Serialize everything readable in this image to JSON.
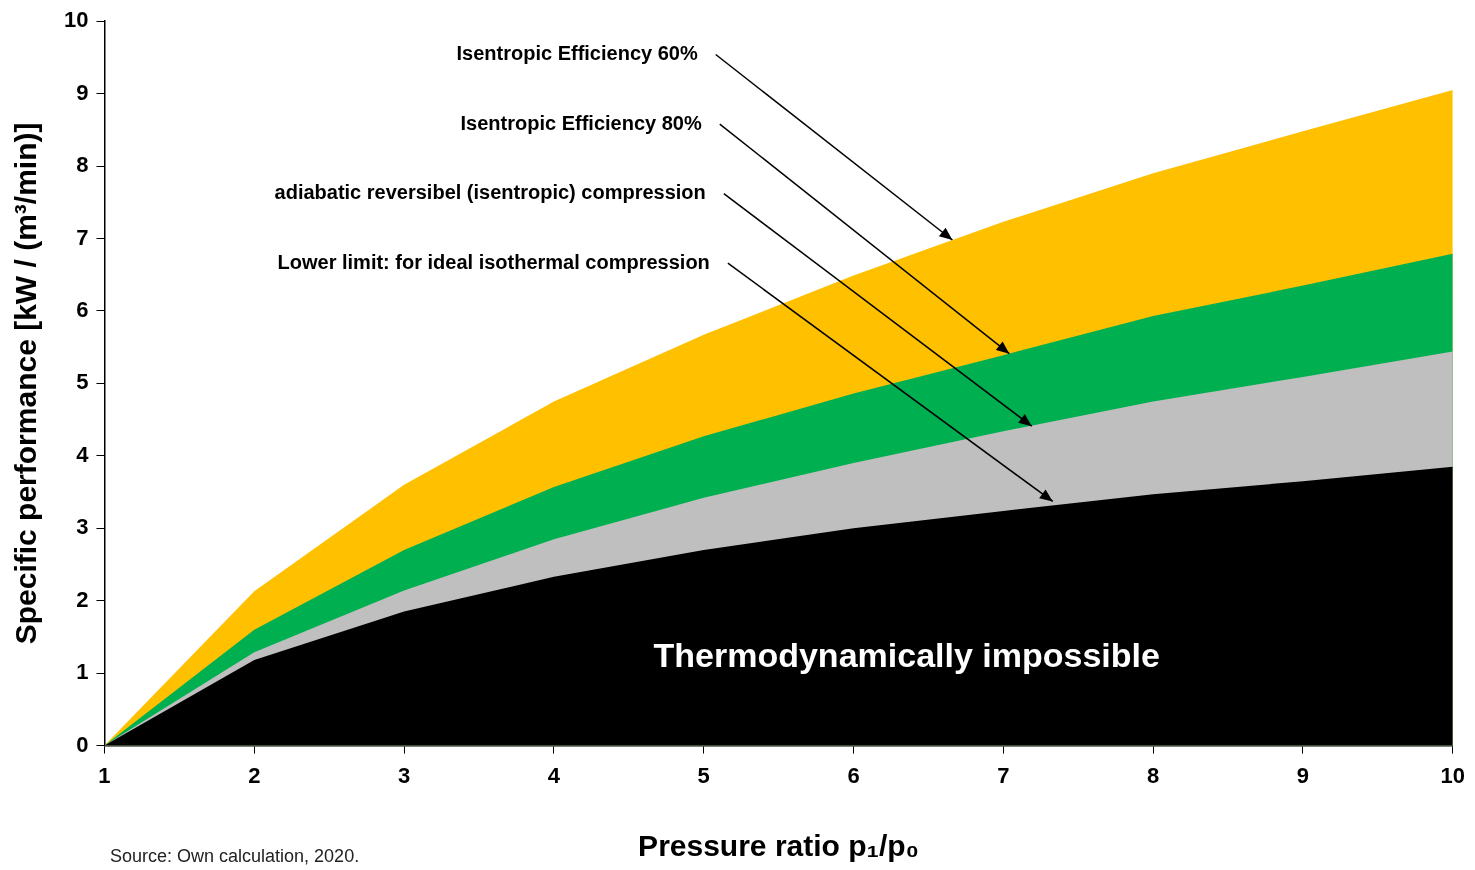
{
  "chart_data": {
    "type": "area",
    "xlabel": "Pressure ratio p₁/p₀",
    "ylabel": "Specific performance [kW / (m³/min)]",
    "x": [
      1,
      2,
      3,
      4,
      5,
      6,
      7,
      8,
      9,
      10
    ],
    "series": [
      {
        "color": "#000000",
        "values": [
          0,
          1.18,
          1.85,
          2.33,
          2.7,
          3.0,
          3.24,
          3.47,
          3.65,
          3.85
        ]
      },
      {
        "color": "#bfbfbf",
        "values": [
          0,
          1.29,
          2.14,
          2.85,
          3.42,
          3.9,
          4.34,
          4.75,
          5.09,
          5.44
        ]
      },
      {
        "color": "#00b050",
        "values": [
          0,
          1.6,
          2.7,
          3.57,
          4.27,
          4.86,
          5.39,
          5.93,
          6.35,
          6.79
        ]
      },
      {
        "color": "#ffc000",
        "values": [
          0,
          2.13,
          3.6,
          4.75,
          5.67,
          6.49,
          7.23,
          7.9,
          8.48,
          9.05
        ]
      }
    ],
    "xlim": [
      1,
      10
    ],
    "xticks": [
      1,
      2,
      3,
      4,
      5,
      6,
      7,
      8,
      9,
      10
    ],
    "ylim": [
      0,
      10
    ],
    "yticks": [
      0,
      1,
      2,
      3,
      4,
      5,
      6,
      7,
      8,
      9,
      10
    ],
    "grid": false,
    "legend": false,
    "annotations": [
      {
        "text": "Isentropic Efficiency 60%",
        "x": 6.66,
        "y": 6.98
      },
      {
        "text": "Isentropic Efficiency 80%",
        "x": 7.04,
        "y": 5.41
      },
      {
        "text": "adiabatic reversibel (isentropic) compression",
        "x": 7.19,
        "y": 4.41
      },
      {
        "text": "Lower limit: for ideal isothermal compression",
        "x": 7.33,
        "y": 3.37
      },
      "Thermodynamically impossible",
      "Source: Own calculation, 2020."
    ]
  }
}
